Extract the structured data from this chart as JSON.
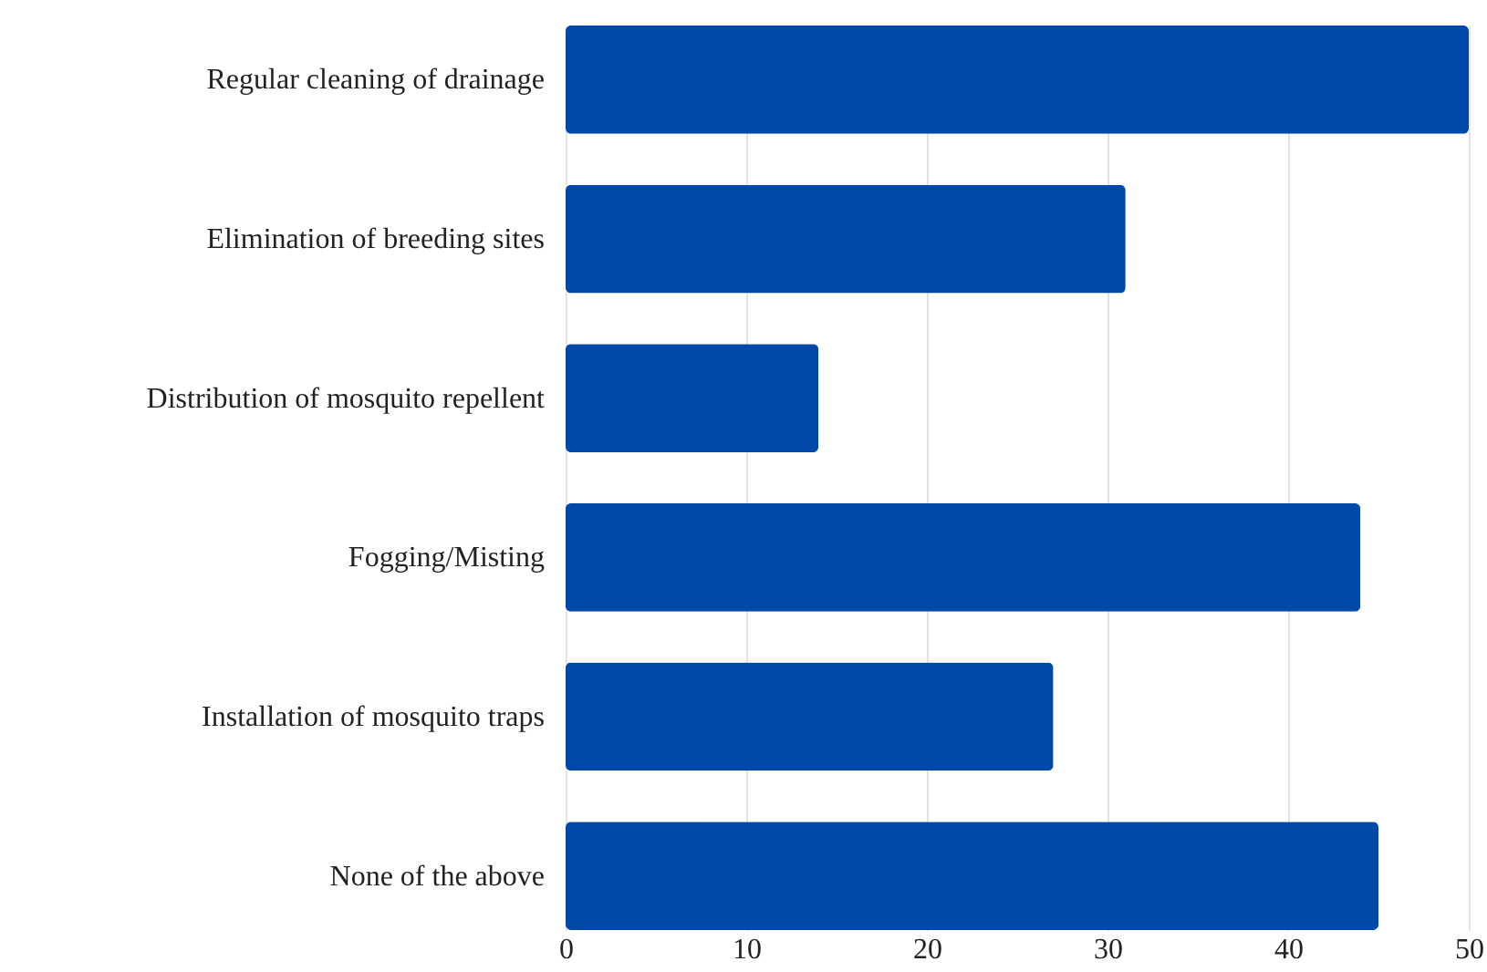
{
  "chart_data": {
    "type": "bar",
    "orientation": "horizontal",
    "categories": [
      "Regular cleaning of drainage",
      "Elimination of breeding sites",
      "Distribution of mosquito repellent",
      "Fogging/Misting",
      "Installation of mosquito traps",
      "None of the above"
    ],
    "values": [
      50,
      31,
      14,
      44,
      27,
      45
    ],
    "color": "#0049a9",
    "xlim": [
      0,
      50
    ],
    "xticks": [
      0,
      10,
      20,
      30,
      40,
      50
    ],
    "grid": "x"
  }
}
